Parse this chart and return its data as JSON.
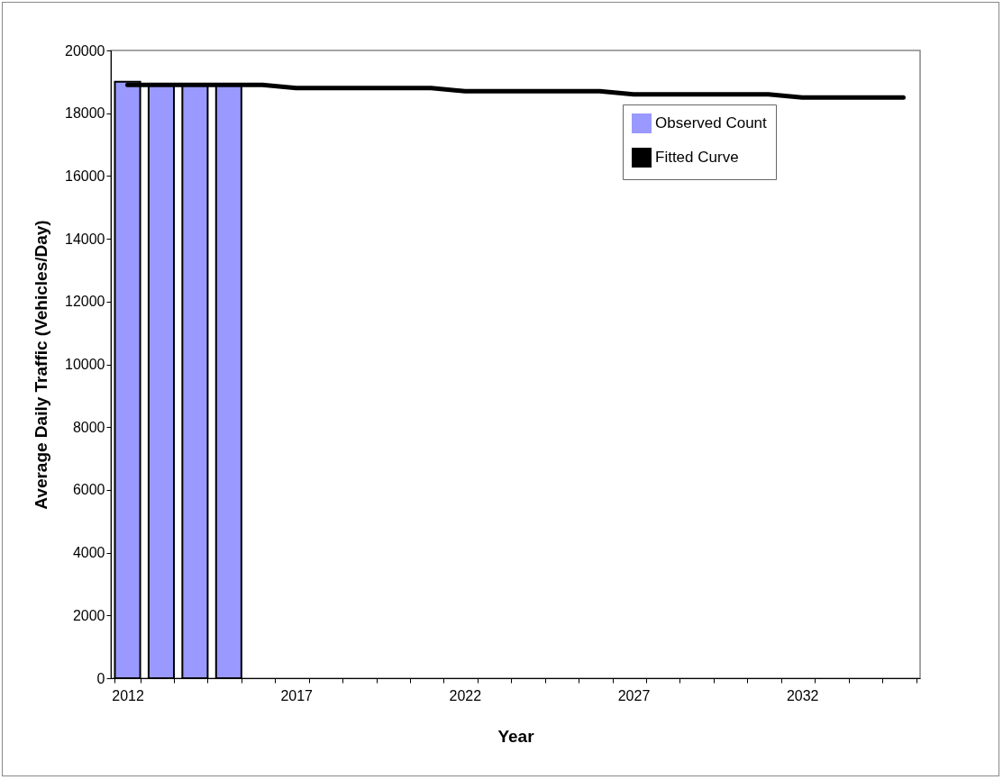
{
  "chart_data": {
    "type": "bar",
    "xlabel": "Year",
    "ylabel": "Average Daily Traffic (Vehicles/Day)",
    "categories": [
      "2012",
      null,
      null,
      null,
      null,
      "2017",
      null,
      null,
      null,
      null,
      "2022",
      null,
      null,
      null,
      null,
      "2027",
      null,
      null,
      null,
      null,
      "2032",
      null,
      null,
      null
    ],
    "series": [
      {
        "name": "Observed Count",
        "color": "#9999ff",
        "values": [
          19000,
          18900,
          18900,
          18900,
          null,
          null,
          null,
          null,
          null,
          null,
          null,
          null,
          null,
          null,
          null,
          null,
          null,
          null,
          null,
          null,
          null,
          null,
          null,
          null
        ]
      },
      {
        "name": "Fitted Curve",
        "type": "line",
        "color": "#000000",
        "values": [
          18900,
          18900,
          18900,
          18900,
          18900,
          18800,
          18800,
          18800,
          18800,
          18800,
          18700,
          18700,
          18700,
          18700,
          18700,
          18600,
          18600,
          18600,
          18600,
          18600,
          18500,
          18500,
          18500,
          18500
        ]
      }
    ],
    "ylim": [
      0,
      20000
    ],
    "yticks": [
      0,
      2000,
      4000,
      6000,
      8000,
      10000,
      12000,
      14000,
      16000,
      18000,
      20000
    ],
    "grid": false,
    "legend": "top right"
  }
}
